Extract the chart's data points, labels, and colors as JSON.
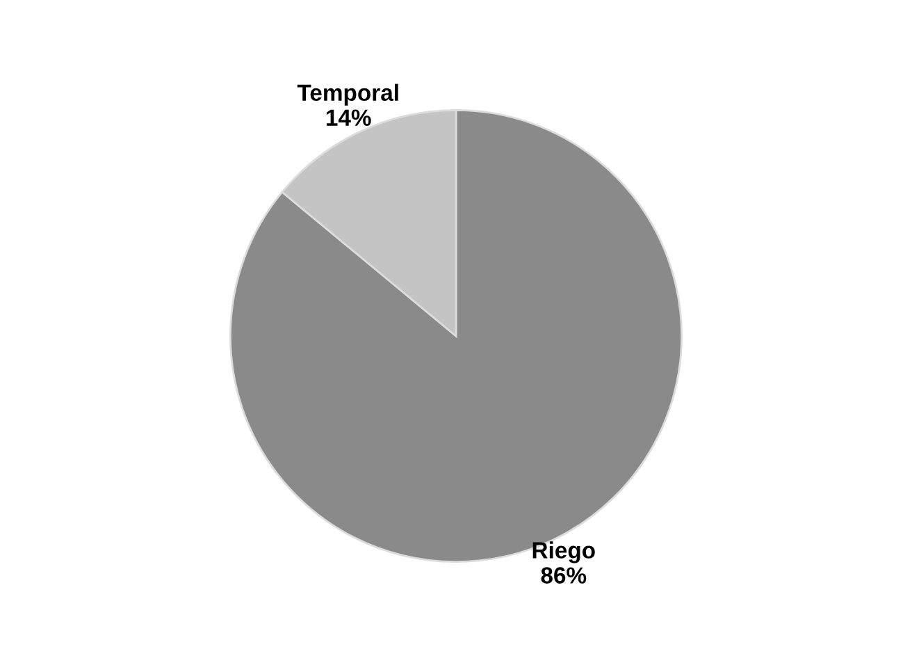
{
  "chart_data": {
    "type": "pie",
    "categories": [
      "Riego",
      "Temporal"
    ],
    "values": [
      86,
      14
    ],
    "colors": [
      "#8a8a8a",
      "#c4c4c4"
    ],
    "value_labels": [
      "86%",
      "14%"
    ],
    "legend": false
  }
}
